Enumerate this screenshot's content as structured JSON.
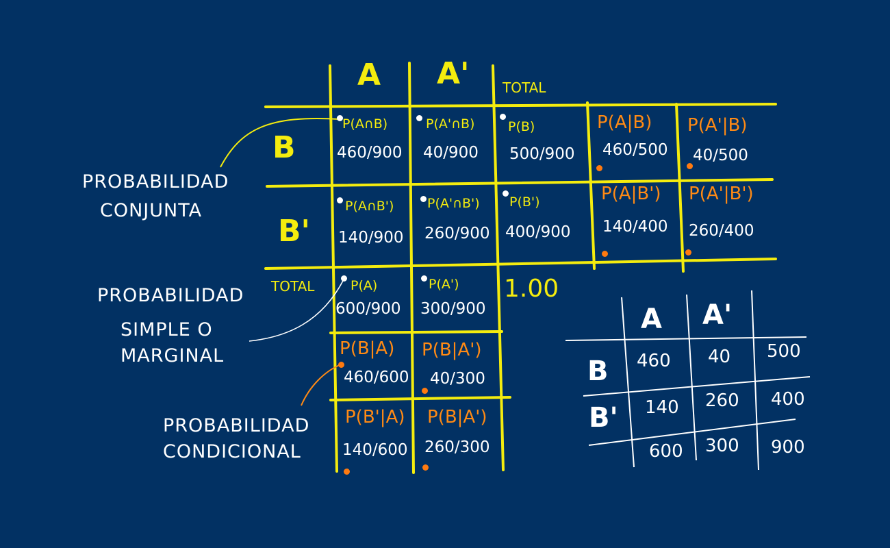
{
  "annotations": {
    "joint": [
      "PROBABILIDAD",
      "CONJUNTA"
    ],
    "marginal": [
      "PROBABILIDAD",
      "SIMPLE O",
      "MARGINAL"
    ],
    "conditional": [
      "PROBABILIDAD",
      "CONDICIONAL"
    ]
  },
  "main_table": {
    "col_a": "A",
    "col_a_prime": "A'",
    "col_total": "TOTAL",
    "row_b": "B",
    "row_b_prime": "B'",
    "row_total": "TOTAL",
    "cells": {
      "ab_label": "P(A∩B)",
      "ab_value": "460/900",
      "apb_label": "P(A'∩B)",
      "apb_value": "40/900",
      "b_label": "P(B)",
      "b_value": "500/900",
      "a_given_b_label": "P(A|B)",
      "a_given_b_value": "460/500",
      "ap_given_b_label": "P(A'|B)",
      "ap_given_b_value": "40/500",
      "abp_label": "P(A∩B')",
      "abp_value": "140/900",
      "apbp_label": "P(A'∩B')",
      "apbp_value": "260/900",
      "bp_label": "P(B')",
      "bp_value": "400/900",
      "a_given_bp_label": "P(A|B')",
      "a_given_bp_value": "140/400",
      "ap_given_bp_label": "P(A'|B')",
      "ap_given_bp_value": "260/400",
      "a_label": "P(A)",
      "a_value": "600/900",
      "ap_label": "P(A')",
      "ap_value": "300/900",
      "grand_total": "1.00",
      "b_given_a_label": "P(B|A)",
      "b_given_a_value": "460/600",
      "b_given_ap_label": "P(B|A')",
      "b_given_ap_value": "40/300",
      "bp_given_a_label": "P(B'|A)",
      "bp_given_a_value": "140/600",
      "b_given_ap2_label": "P(B|A')",
      "b_given_ap2_value": "260/300"
    }
  },
  "small_table": {
    "col_a": "A",
    "col_a_prime": "A'",
    "row_b": "B",
    "row_b_prime": "B'",
    "rows": [
      [
        "460",
        "40",
        "500"
      ],
      [
        "140",
        "260",
        "400"
      ],
      [
        "600",
        "300",
        "900"
      ]
    ]
  },
  "colors": {
    "background": "#023163",
    "grid": "#f4ec0e",
    "conditional": "#ff8a14",
    "values": "#ffffff"
  }
}
